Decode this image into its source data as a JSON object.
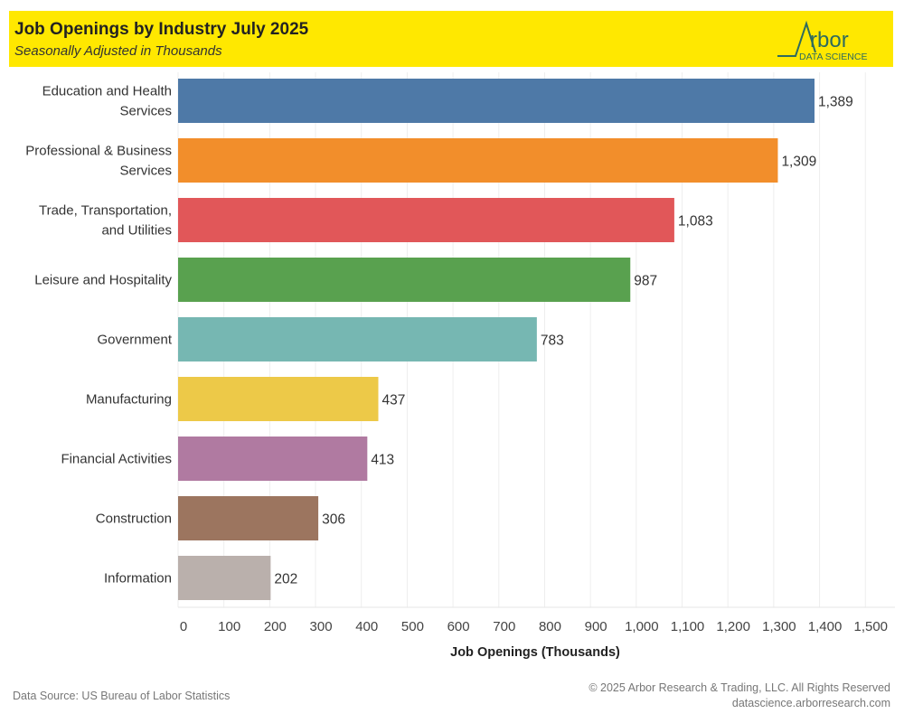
{
  "header": {
    "title": "Job Openings by Industry July 2025",
    "subtitle": "Seasonally Adjusted in Thousands",
    "logo_text": "Arbor",
    "logo_subtext": "DATA SCIENCE"
  },
  "chart_data": {
    "type": "bar",
    "orientation": "horizontal",
    "title": "Job Openings by Industry July 2025",
    "subtitle": "Seasonally Adjusted in Thousands",
    "xlabel": "Job Openings (Thousands)",
    "ylabel": "",
    "xlim": [
      0,
      1560
    ],
    "xticks": [
      0,
      100,
      200,
      300,
      400,
      500,
      600,
      700,
      800,
      900,
      1000,
      1100,
      1200,
      1300,
      1400,
      1500
    ],
    "xtick_labels": [
      "0",
      "100",
      "200",
      "300",
      "400",
      "500",
      "600",
      "700",
      "800",
      "900",
      "1,000",
      "1,100",
      "1,200",
      "1,300",
      "1,400",
      "1,500"
    ],
    "grid": true,
    "categories": [
      [
        "Education and Health",
        "Services"
      ],
      [
        "Professional & Business",
        "Services"
      ],
      [
        "Trade, Transportation,",
        "and Utilities"
      ],
      [
        "Leisure and Hospitality"
      ],
      [
        "Government"
      ],
      [
        "Manufacturing"
      ],
      [
        "Financial Activities"
      ],
      [
        "Construction"
      ],
      [
        "Information"
      ]
    ],
    "values": [
      1389,
      1309,
      1083,
      987,
      783,
      437,
      413,
      306,
      202
    ],
    "data_labels": [
      "1,389",
      "1,309",
      "1,083",
      "987",
      "783",
      "437",
      "413",
      "306",
      "202"
    ],
    "colors": [
      "#4e79a7",
      "#f28e2b",
      "#e15759",
      "#59a14f",
      "#76b7b2",
      "#edc948",
      "#b07aa1",
      "#9c755f",
      "#bab0ac"
    ]
  },
  "footer": {
    "source": "Data Source: US Bureau of Labor Statistics",
    "copyright": "© 2025 Arbor Research & Trading, LLC. All Rights Reserved",
    "website": "datascience.arborresearch.com"
  }
}
